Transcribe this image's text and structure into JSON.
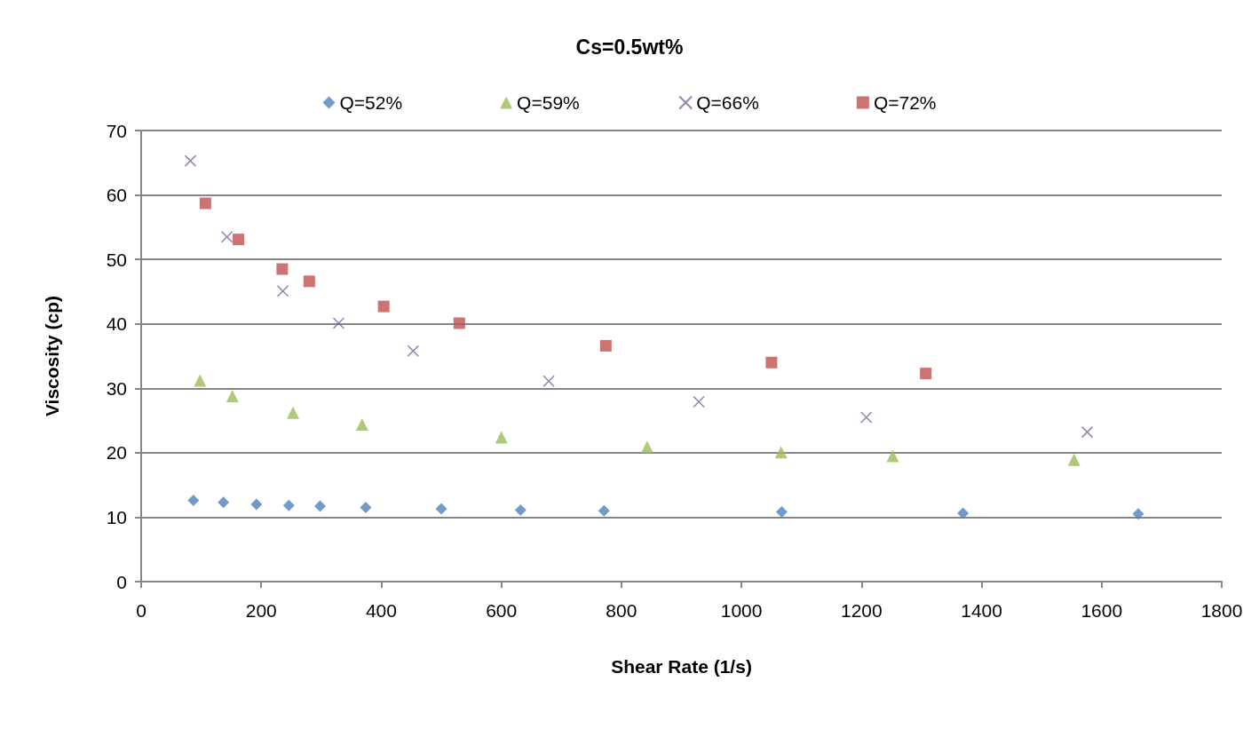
{
  "chart_data": {
    "type": "scatter",
    "title": "Cs=0.5wt%",
    "xlabel": "Shear Rate (1/s)",
    "ylabel": "Viscosity (cp)",
    "xlim": [
      0,
      1800
    ],
    "xticks": [
      0,
      200,
      400,
      600,
      800,
      1000,
      1200,
      1400,
      1600,
      1800
    ],
    "ylim": [
      0,
      70
    ],
    "yticks": [
      0,
      10,
      20,
      30,
      40,
      50,
      60,
      70
    ],
    "grid": "y",
    "legend": "top",
    "series": [
      {
        "name": "Q=52%",
        "color": "#4f81bd",
        "marker": "diamond",
        "x": [
          87,
          137,
          192,
          246,
          298,
          374,
          500,
          632,
          771,
          1067,
          1369,
          1661
        ],
        "values": [
          12.6,
          12.3,
          12.0,
          11.8,
          11.7,
          11.5,
          11.3,
          11.1,
          11.0,
          10.8,
          10.6,
          10.5
        ]
      },
      {
        "name": "Q=59%",
        "color": "#9bbb59",
        "marker": "triangle",
        "x": [
          98,
          152,
          253,
          368,
          600,
          843,
          1066,
          1252,
          1554
        ],
        "values": [
          31.2,
          28.8,
          26.2,
          24.4,
          22.4,
          20.9,
          20.1,
          19.5,
          18.9
        ]
      },
      {
        "name": "Q=66%",
        "color": "#8064a2",
        "marker": "cross",
        "x": [
          82,
          143,
          236,
          329,
          453,
          679,
          929,
          1208,
          1576
        ],
        "values": [
          65.3,
          53.5,
          45.1,
          40.1,
          35.8,
          31.1,
          27.9,
          25.5,
          23.2
        ]
      },
      {
        "name": "Q=72%",
        "color": "#c0504d",
        "marker": "square",
        "x": [
          107,
          162,
          235,
          280,
          404,
          530,
          774,
          1050,
          1307
        ],
        "values": [
          58.7,
          53.1,
          48.5,
          46.6,
          42.7,
          40.1,
          36.6,
          34.0,
          32.3
        ]
      }
    ]
  }
}
